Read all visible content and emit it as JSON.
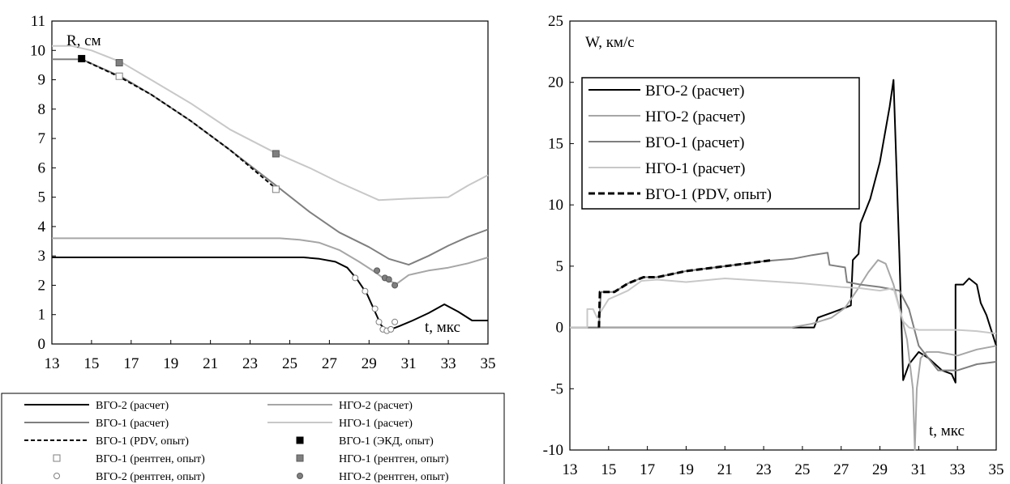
{
  "chart_data": [
    {
      "type": "line",
      "ylabel": "R, см",
      "xlabel": "t, мкс",
      "xlim": [
        13,
        35
      ],
      "ylim": [
        0,
        11
      ],
      "xticks": [
        13,
        15,
        17,
        19,
        21,
        23,
        25,
        27,
        29,
        31,
        33,
        35
      ],
      "yticks": [
        0,
        1,
        2,
        3,
        4,
        5,
        6,
        7,
        8,
        9,
        10,
        11
      ],
      "grid": false,
      "legend_position": "bottom",
      "series": [
        {
          "name": "ВГО-2 (расчет)",
          "color": "#000000",
          "style": "solid",
          "width": 2,
          "x": [
            13,
            25.7,
            26.5,
            27.3,
            27.9,
            28.4,
            28.9,
            29.3,
            29.6,
            29.9,
            30.1,
            30.5,
            31.2,
            32,
            32.8,
            33.5,
            34.2,
            35
          ],
          "y": [
            2.95,
            2.95,
            2.9,
            2.8,
            2.6,
            2.2,
            1.7,
            1.1,
            0.65,
            0.45,
            0.5,
            0.6,
            0.8,
            1.05,
            1.35,
            1.1,
            0.8,
            0.8
          ]
        },
        {
          "name": "НГО-2 (расчет)",
          "color": "#a6a6a6",
          "style": "solid",
          "width": 2,
          "x": [
            13,
            24.5,
            25.5,
            26.5,
            27.5,
            28.5,
            29.3,
            29.8,
            30.4,
            31,
            32,
            33,
            34,
            35
          ],
          "y": [
            3.6,
            3.6,
            3.55,
            3.45,
            3.2,
            2.8,
            2.45,
            2.2,
            2.05,
            2.35,
            2.5,
            2.6,
            2.75,
            2.95
          ]
        },
        {
          "name": "ВГО-1 (расчет)",
          "color": "#7f7f7f",
          "style": "solid",
          "width": 2,
          "x": [
            13,
            14.5,
            16.5,
            18,
            20,
            22,
            24.3,
            26,
            27.5,
            29,
            30,
            31,
            32,
            33,
            34,
            35
          ],
          "y": [
            9.7,
            9.7,
            9.1,
            8.5,
            7.6,
            6.6,
            5.4,
            4.5,
            3.8,
            3.3,
            2.9,
            2.7,
            3.0,
            3.35,
            3.65,
            3.9
          ]
        },
        {
          "name": "НГО-1 (расчет)",
          "color": "#c8c8c8",
          "style": "solid",
          "width": 2,
          "x": [
            13,
            14,
            15,
            16.5,
            18,
            20,
            22,
            24.3,
            26,
            27.5,
            29.5,
            31,
            33,
            34,
            35
          ],
          "y": [
            10.15,
            10.15,
            10.0,
            9.6,
            9.0,
            8.2,
            7.3,
            6.5,
            6.0,
            5.5,
            4.9,
            4.95,
            5.0,
            5.4,
            5.75
          ]
        },
        {
          "name": "ВГО-1 (PDV, опыт)",
          "color": "#000000",
          "style": "dashed",
          "width": 2,
          "x": [
            14.5,
            16.4,
            18,
            20,
            22,
            24.3
          ],
          "y": [
            9.7,
            9.1,
            8.5,
            7.6,
            6.6,
            5.3
          ]
        }
      ],
      "markers": [
        {
          "name": "ВГО-1 (ЭКД, опыт)",
          "shape": "square",
          "fill": "#000000",
          "stroke": "#000000",
          "x": [
            14.5
          ],
          "y": [
            9.72
          ]
        },
        {
          "name": "ВГО-1 (рентген, опыт)",
          "shape": "square",
          "fill": "#ffffff",
          "stroke": "#7f7f7f",
          "x": [
            16.4,
            24.3
          ],
          "y": [
            9.12,
            5.27
          ]
        },
        {
          "name": "НГО-1 (рентген, опыт)",
          "shape": "square",
          "fill": "#7f7f7f",
          "stroke": "#595959",
          "x": [
            16.4,
            24.3
          ],
          "y": [
            9.58,
            6.48
          ]
        },
        {
          "name": "ВГО-2 (рентген, опыт)",
          "shape": "circle",
          "fill": "#ffffff",
          "stroke": "#7f7f7f",
          "x": [
            28.3,
            28.8,
            29.3,
            29.5,
            29.7,
            29.9,
            30.1,
            30.3
          ],
          "y": [
            2.25,
            1.8,
            1.2,
            0.75,
            0.5,
            0.45,
            0.5,
            0.75
          ]
        },
        {
          "name": "НГО-2 (рентген, опыт)",
          "shape": "circle",
          "fill": "#7f7f7f",
          "stroke": "#595959",
          "x": [
            29.4,
            29.8,
            30.0,
            30.3
          ],
          "y": [
            2.5,
            2.25,
            2.2,
            2.0
          ]
        }
      ]
    },
    {
      "type": "line",
      "ylabel": "W, км/с",
      "xlabel": "t, мкс",
      "xlim": [
        13,
        35
      ],
      "ylim": [
        -10,
        25
      ],
      "xticks": [
        13,
        15,
        17,
        19,
        21,
        23,
        25,
        27,
        29,
        31,
        33,
        35
      ],
      "yticks": [
        -10,
        -5,
        0,
        5,
        10,
        15,
        20,
        25
      ],
      "grid": false,
      "legend_position": "top-left",
      "series": [
        {
          "name": "ВГО-2 (расчет)",
          "color": "#000000",
          "style": "solid",
          "width": 2,
          "x": [
            13,
            24.4,
            25.6,
            25.8,
            26.5,
            27.2,
            27.5,
            27.6,
            27.9,
            28.0,
            28.5,
            29.0,
            29.5,
            29.7,
            30.0,
            30.2,
            30.5,
            31.0,
            31.5,
            32.2,
            32.7,
            32.9,
            32.9,
            33.3,
            33.6,
            34.0,
            34.2,
            34.5,
            34.8,
            35
          ],
          "y": [
            0,
            0,
            0,
            0.8,
            1.2,
            1.6,
            1.8,
            5.5,
            6,
            8.5,
            10.5,
            13.5,
            18,
            20.2,
            6,
            -4.3,
            -3.0,
            -2.0,
            -2.5,
            -3.5,
            -3.8,
            -4.5,
            3.5,
            3.5,
            4.0,
            3.5,
            2.0,
            1.0,
            -0.5,
            -1.5
          ]
        },
        {
          "name": "НГО-2 (расчет)",
          "color": "#a6a6a6",
          "style": "solid",
          "width": 2,
          "x": [
            13,
            24.4,
            25.5,
            26.5,
            27.2,
            27.8,
            28.4,
            28.9,
            29.3,
            29.7,
            30.1,
            30.4,
            30.7,
            30.8,
            30.9,
            31.1,
            31.4,
            32,
            33,
            34,
            35
          ],
          "y": [
            0,
            0,
            0.3,
            0.8,
            1.6,
            3.0,
            4.5,
            5.5,
            5.2,
            3.5,
            1.0,
            -1.0,
            -5,
            -10,
            -5,
            -2.5,
            -2.0,
            -2.0,
            -2.3,
            -1.8,
            -1.5
          ]
        },
        {
          "name": "ВГО-1 (расчет)",
          "color": "#7f7f7f",
          "style": "solid",
          "width": 2,
          "x": [
            13,
            14.5,
            14.6,
            15.3,
            16,
            16.8,
            17.5,
            19,
            21,
            23,
            24.5,
            25.5,
            26.3,
            26.4,
            27.2,
            27.3,
            28,
            29,
            30,
            30.5,
            31,
            32,
            33,
            34,
            35
          ],
          "y": [
            0,
            0,
            2.9,
            2.9,
            3.6,
            4.1,
            4.1,
            4.6,
            5.0,
            5.4,
            5.6,
            5.9,
            6.1,
            5.1,
            4.9,
            3.7,
            3.5,
            3.3,
            3.0,
            1.5,
            -1.5,
            -3.5,
            -3.5,
            -3.0,
            -2.8
          ]
        },
        {
          "name": "НГО-1 (расчет)",
          "color": "#c8c8c8",
          "style": "solid",
          "width": 2,
          "x": [
            13,
            13.9,
            13.9,
            14.2,
            14.4,
            15,
            16,
            16.7,
            17.5,
            19,
            21,
            23,
            25,
            27,
            28,
            29,
            29.7,
            30.2,
            30.5,
            31,
            32,
            33,
            34,
            35
          ],
          "y": [
            0,
            0,
            1.5,
            1.5,
            0.8,
            2.3,
            3.0,
            3.8,
            3.9,
            3.7,
            4.0,
            3.8,
            3.6,
            3.3,
            3.2,
            3.0,
            3.2,
            0.5,
            0.0,
            -0.2,
            -0.2,
            -0.2,
            -0.3,
            -0.5
          ]
        },
        {
          "name": "ВГО-1 (PDV, опыт)",
          "color": "#000000",
          "style": "dashed",
          "width": 3,
          "x": [
            14.5,
            14.55,
            15.3,
            16,
            16.8,
            17.5,
            19,
            21,
            23,
            23.5
          ],
          "y": [
            0,
            2.9,
            2.9,
            3.6,
            4.1,
            4.1,
            4.6,
            5.0,
            5.4,
            5.5
          ]
        }
      ]
    }
  ]
}
